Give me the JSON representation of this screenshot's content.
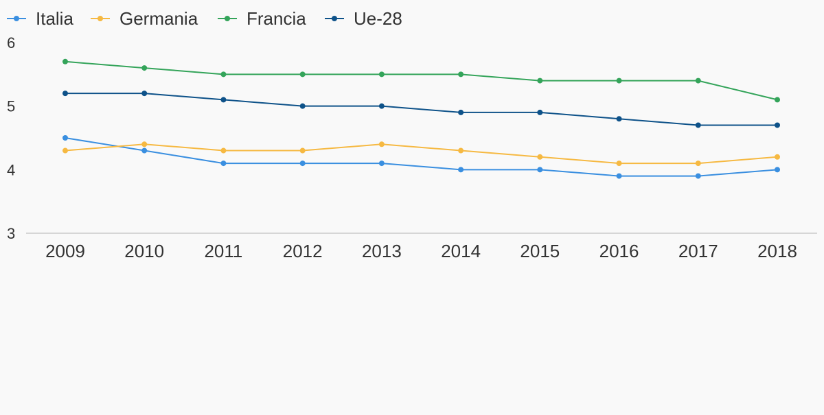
{
  "chart_data": {
    "type": "line",
    "title": "",
    "xlabel": "",
    "ylabel": "",
    "categories": [
      "2009",
      "2010",
      "2011",
      "2012",
      "2013",
      "2014",
      "2015",
      "2016",
      "2017",
      "2018"
    ],
    "ylim": [
      3,
      6
    ],
    "y_ticks": [
      "3",
      "4",
      "5",
      "6"
    ],
    "grid": false,
    "legend_position": "top-left",
    "series": [
      {
        "name": "Italia",
        "color": "#3a8fe0",
        "values": [
          4.5,
          4.3,
          4.1,
          4.1,
          4.1,
          4.0,
          4.0,
          3.9,
          3.9,
          4.0
        ]
      },
      {
        "name": "Germania",
        "color": "#f6b942",
        "values": [
          4.3,
          4.4,
          4.3,
          4.3,
          4.4,
          4.3,
          4.2,
          4.1,
          4.1,
          4.2
        ]
      },
      {
        "name": "Francia",
        "color": "#34a45a",
        "values": [
          5.7,
          5.6,
          5.5,
          5.5,
          5.5,
          5.5,
          5.4,
          5.4,
          5.4,
          5.1
        ]
      },
      {
        "name": "Ue-28",
        "color": "#0e5289",
        "values": [
          5.2,
          5.2,
          5.1,
          5.0,
          5.0,
          4.9,
          4.9,
          4.8,
          4.7,
          4.7
        ]
      }
    ]
  }
}
